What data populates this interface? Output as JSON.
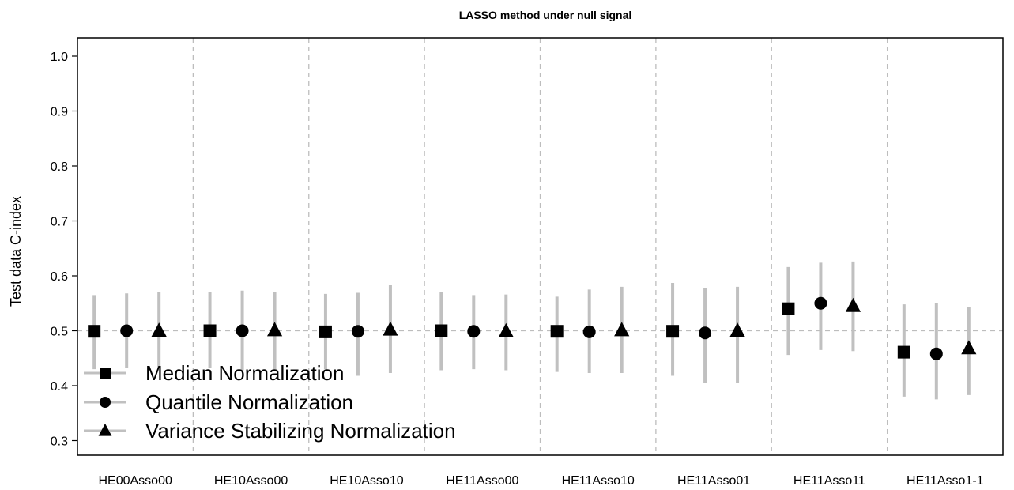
{
  "chart_data": {
    "type": "scatter",
    "title": "LASSO method under null signal",
    "xlabel": "",
    "ylabel": "Test data C-index",
    "ylim": [
      0.3,
      1.0
    ],
    "yticks": [
      "0.3",
      "0.4",
      "0.5",
      "0.6",
      "0.7",
      "0.8",
      "0.9",
      "1.0"
    ],
    "reference_line": 0.5,
    "grid": "vertical dashed separators between groups",
    "legend_position": "bottom-left",
    "categories": [
      "HE00Asso00",
      "HE10Asso00",
      "HE10Asso10",
      "HE11Asso00",
      "HE11Asso10",
      "HE11Asso01",
      "HE11Asso11",
      "HE11Asso1-1"
    ],
    "series": [
      {
        "name": "Median Normalization",
        "marker": "square",
        "values": [
          0.499,
          0.5,
          0.498,
          0.5,
          0.499,
          0.499,
          0.54,
          0.461
        ],
        "lower": [
          0.43,
          0.432,
          0.43,
          0.428,
          0.425,
          0.418,
          0.456,
          0.38
        ],
        "upper": [
          0.565,
          0.57,
          0.567,
          0.571,
          0.562,
          0.587,
          0.616,
          0.548
        ]
      },
      {
        "name": "Quantile Normalization",
        "marker": "circle",
        "values": [
          0.5,
          0.5,
          0.499,
          0.499,
          0.498,
          0.496,
          0.55,
          0.458
        ],
        "lower": [
          0.432,
          0.428,
          0.418,
          0.43,
          0.423,
          0.405,
          0.465,
          0.375
        ],
        "upper": [
          0.568,
          0.573,
          0.569,
          0.565,
          0.575,
          0.577,
          0.624,
          0.55
        ]
      },
      {
        "name": "Variance Stabilizing Normalization",
        "marker": "triangle",
        "values": [
          0.5,
          0.501,
          0.502,
          0.499,
          0.501,
          0.5,
          0.545,
          0.468
        ],
        "lower": [
          0.432,
          0.43,
          0.423,
          0.428,
          0.423,
          0.405,
          0.463,
          0.383
        ],
        "upper": [
          0.57,
          0.57,
          0.584,
          0.566,
          0.58,
          0.58,
          0.626,
          0.543
        ]
      }
    ],
    "colors": {
      "marker": "#000000",
      "error_bar": "#c0c0c0",
      "dashed_lines": "#bdbdbd",
      "axis": "#000000"
    }
  }
}
